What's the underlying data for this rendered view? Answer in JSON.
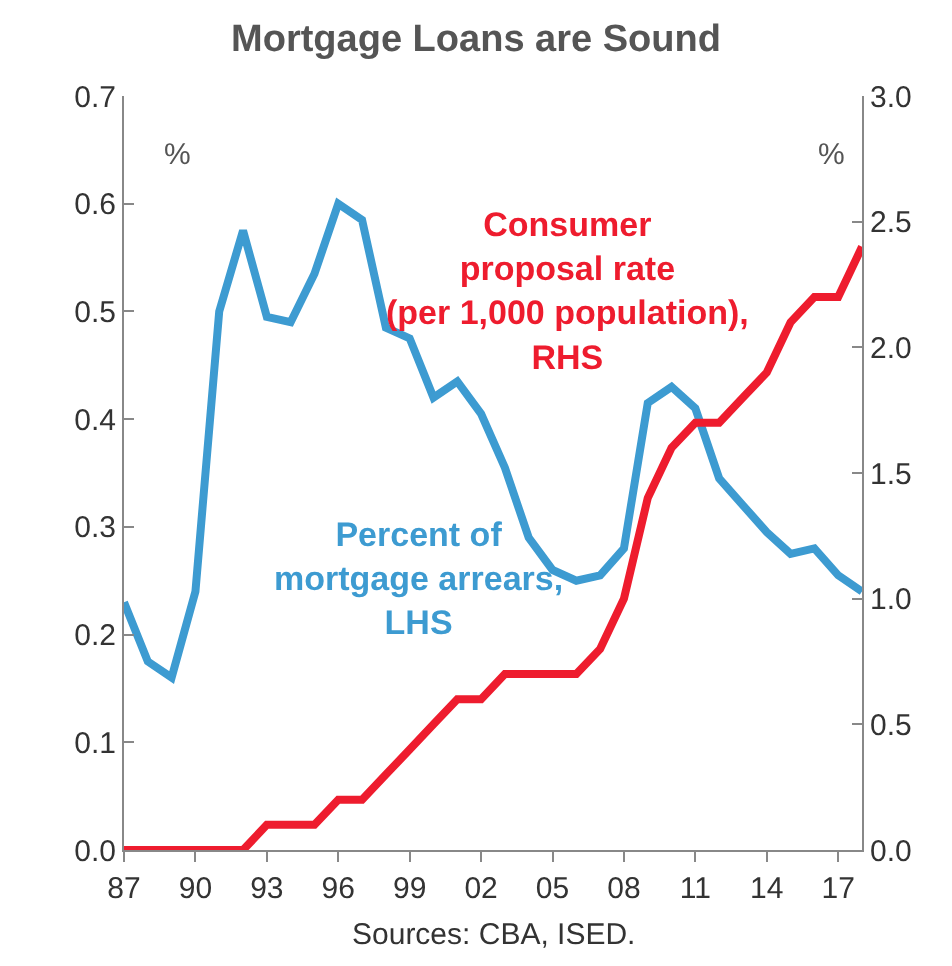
{
  "chart_data": {
    "type": "line",
    "title": "Mortgage Loans are Sound",
    "x": [
      1987,
      1988,
      1989,
      1990,
      1991,
      1992,
      1993,
      1994,
      1995,
      1996,
      1997,
      1998,
      1999,
      2000,
      2001,
      2002,
      2003,
      2004,
      2005,
      2006,
      2007,
      2008,
      2009,
      2010,
      2011,
      2012,
      2013,
      2014,
      2015,
      2016,
      2017,
      2018
    ],
    "series": [
      {
        "name": "Percent of mortgage arrears, LHS",
        "color": "#3d9bd1",
        "values": [
          0.23,
          0.175,
          0.16,
          0.24,
          0.5,
          0.575,
          0.495,
          0.49,
          0.535,
          0.6,
          0.585,
          0.485,
          0.475,
          0.42,
          0.435,
          0.405,
          0.355,
          0.29,
          0.26,
          0.25,
          0.255,
          0.28,
          0.415,
          0.43,
          0.41,
          0.345,
          0.32,
          0.295,
          0.275,
          0.28,
          0.255,
          0.24
        ]
      },
      {
        "name": "Consumer proposal rate (per 1,000 population), RHS",
        "color": "#ee1c2e",
        "axis": "y2",
        "values": [
          0,
          0,
          0,
          0,
          0,
          0,
          0.1,
          0.1,
          0.1,
          0.2,
          0.2,
          0.3,
          0.4,
          0.5,
          0.6,
          0.6,
          0.7,
          0.7,
          0.7,
          0.7,
          0.8,
          1.0,
          1.4,
          1.6,
          1.7,
          1.7,
          1.8,
          1.9,
          2.1,
          2.2,
          2.2,
          2.4
        ]
      }
    ],
    "xlim": [
      1987,
      2018
    ],
    "xticks": [
      {
        "value": 1987,
        "label": "87"
      },
      {
        "value": 1990,
        "label": "90"
      },
      {
        "value": 1993,
        "label": "93"
      },
      {
        "value": 1996,
        "label": "96"
      },
      {
        "value": 1999,
        "label": "99"
      },
      {
        "value": 2002,
        "label": "02"
      },
      {
        "value": 2005,
        "label": "05"
      },
      {
        "value": 2008,
        "label": "08"
      },
      {
        "value": 2011,
        "label": "11"
      },
      {
        "value": 2014,
        "label": "14"
      },
      {
        "value": 2017,
        "label": "17"
      }
    ],
    "ylim": [
      0,
      0.7
    ],
    "yticks": [
      {
        "value": 0,
        "label": "0.0"
      },
      0.1,
      0.2,
      0.3,
      0.4,
      0.5,
      0.6,
      0.7
    ],
    "y2lim": [
      0,
      3
    ],
    "y2ticks": [
      {
        "value": 0,
        "label": "0.0"
      },
      0.5,
      {
        "value": 1,
        "label": "1.0"
      },
      1.5,
      {
        "value": 2,
        "label": "2.0"
      },
      2.5,
      {
        "value": 3,
        "label": "3.0"
      }
    ],
    "ylabel": "%",
    "y2label": "%",
    "grid": false,
    "legend": false,
    "annotations": [
      "Sources: CBA, ISED."
    ]
  }
}
